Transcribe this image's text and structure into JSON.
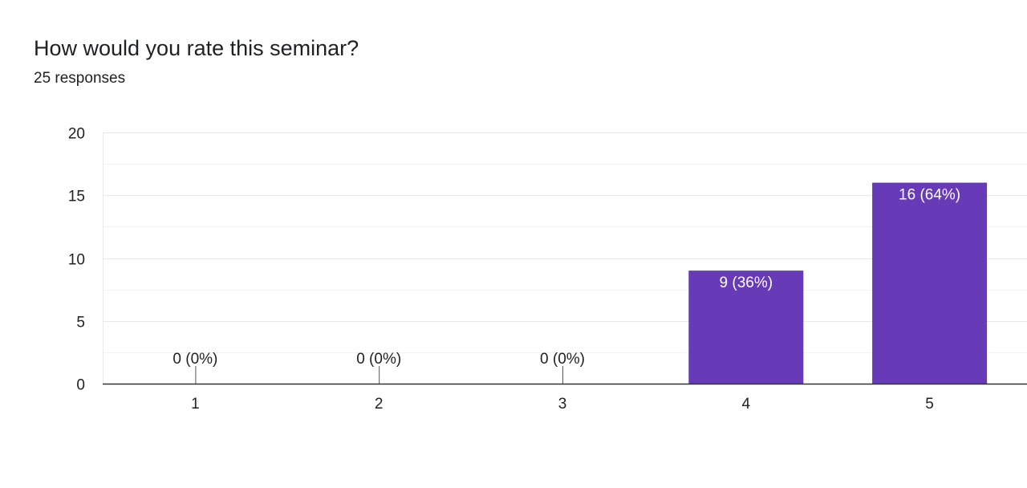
{
  "question": {
    "title": "How would you rate this seminar?",
    "response_count": "25 responses"
  },
  "colors": {
    "bar": "#673ab7",
    "gridline": "#e8e8e8",
    "minor_gridline": "#f3f3f3",
    "axis": "#333333",
    "text": "#202124",
    "bar_label_inside": "#ffffff"
  },
  "chart_data": {
    "type": "bar",
    "categories": [
      "1",
      "2",
      "3",
      "4",
      "5"
    ],
    "values": [
      0,
      0,
      0,
      9,
      16
    ],
    "data_labels": [
      "0 (0%)",
      "0 (0%)",
      "0 (0%)",
      "9 (36%)",
      "16 (64%)"
    ],
    "ylim": [
      0,
      20
    ],
    "yticks": [
      0,
      5,
      10,
      15,
      20
    ],
    "grid": true,
    "legend": "none"
  }
}
